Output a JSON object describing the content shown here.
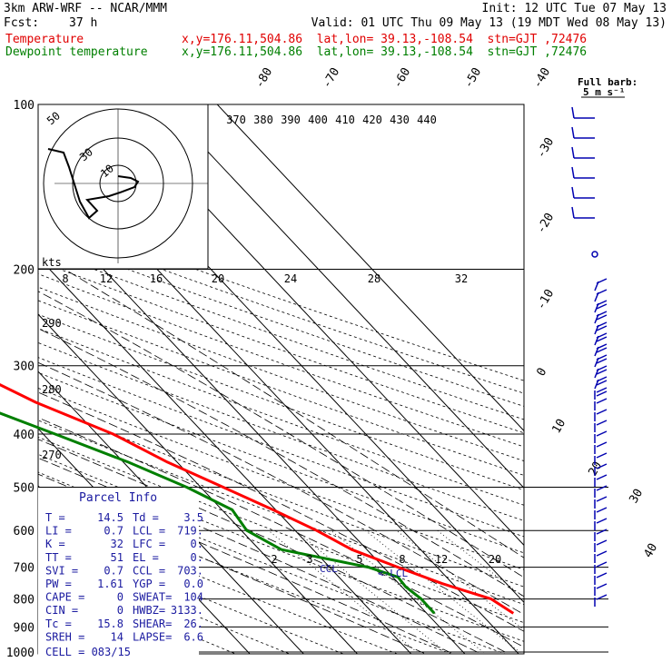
{
  "header": {
    "model": "3km ARW-WRF -- NCAR/MMM",
    "init": "Init: 12 UTC Tue 07 May 13",
    "fcst_label": "Fcst:",
    "fcst_value": "37 h",
    "valid": "Valid: 01 UTC Thu 09 May 13 (19 MDT Wed 08 May 13)",
    "temp_label": "Temperature",
    "temp_loc": "x,y=176.11,504.86  lat,lon= 39.13,-108.54  stn=GJT ,72476",
    "dew_label": "Dewpoint temperature",
    "dew_loc": "x,y=176.11,504.86  lat,lon= 39.13,-108.54  stn=GJT ,72476"
  },
  "colors": {
    "temperature": "#ff0000",
    "dewpoint": "#007f00",
    "wind": "#0000b0",
    "parcel": "#1a1aa0"
  },
  "chart_data": {
    "type": "line",
    "pressure_levels": [
      100,
      200,
      300,
      400,
      500,
      600,
      700,
      800,
      900,
      1000
    ],
    "temp_tick_labels": [
      "-80",
      "-70",
      "-60",
      "-50",
      "-40",
      "-30",
      "-20",
      "-10",
      "0",
      "10",
      "20",
      "30",
      "40"
    ],
    "theta_labels": [
      "370",
      "380",
      "390",
      "400",
      "410",
      "420",
      "430",
      "440"
    ],
    "mixing_ratio_labels_upper": [
      "8",
      "12",
      "16",
      "20",
      "24",
      "28",
      "32"
    ],
    "mixing_ratio_labels_lower": [
      "2",
      "3",
      "5",
      "8",
      "12",
      "20"
    ],
    "dry_adiabat_labels": [
      "290",
      "280",
      "270"
    ],
    "series": [
      {
        "name": "Temperature",
        "pressure": [
          105,
          160,
          200,
          212,
          225,
          250,
          300,
          350,
          400,
          450,
          500,
          550,
          600,
          650,
          700,
          750,
          800,
          850
        ],
        "temp": [
          -51.3,
          -54.3,
          -56.8,
          -57.7,
          -55.4,
          -50.9,
          -43.3,
          -35.8,
          -27.0,
          -21.8,
          -15.8,
          -10.5,
          -6.0,
          -2.8,
          2.7,
          8.1,
          14.5,
          16.1
        ]
      },
      {
        "name": "Dewpoint temperature",
        "pressure": [
          105,
          160,
          190,
          200,
          225,
          260,
          300,
          350,
          400,
          450,
          500,
          550,
          600,
          650,
          700,
          730,
          760,
          800,
          850
        ],
        "temp": [
          -63.6,
          -79.6,
          -70.5,
          -68.1,
          -65.0,
          -61.6,
          -55.5,
          -47.8,
          -37.8,
          -29.1,
          -22.6,
          -18.1,
          -19.0,
          -15.9,
          -2.8,
          1.0,
          0.7,
          1.5,
          1.4
        ]
      }
    ]
  },
  "hodograph": {
    "ring_labels": [
      "50",
      "30",
      "10"
    ],
    "units": "kts"
  },
  "wind_barbs": {
    "title": "Full barb:",
    "unit": "5 m s⁻¹"
  },
  "parcel_info": {
    "title": "Parcel Info",
    "rows": [
      [
        "T  =",
        "14.5",
        "Td =",
        "3.5"
      ],
      [
        "LI =",
        "0.7",
        "LCL =",
        "719."
      ],
      [
        "K  =",
        "32",
        "LFC =",
        "0."
      ],
      [
        "TT =",
        "51",
        "EL  =",
        "0."
      ],
      [
        "SVI =",
        "0.7",
        "CCL =",
        "703."
      ],
      [
        "PW =",
        "1.61",
        "YGP =",
        "0.0"
      ],
      [
        "CAPE =",
        "0",
        "SWEAT=",
        "104"
      ],
      [
        "CIN =",
        "0",
        "HWBZ=",
        "3133."
      ],
      [
        "Tc =",
        "15.8",
        "SHEAR=",
        "26."
      ],
      [
        "SREH =",
        "14",
        "LAPSE=",
        "6.6"
      ]
    ],
    "cell": "CELL = 083/15",
    "ccl_label": "CCL",
    "lcl_label": "<-LCL"
  }
}
